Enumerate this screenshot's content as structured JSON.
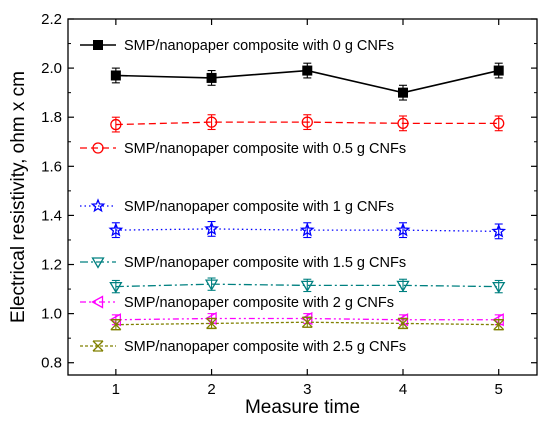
{
  "chart_data": {
    "type": "line",
    "xlabel": "Measure time",
    "ylabel": "Electrical resistivity, ohm x cm",
    "xlim": [
      0.5,
      5.4
    ],
    "ylim": [
      0.75,
      2.2
    ],
    "x": [
      1,
      2,
      3,
      4,
      5
    ],
    "xticks": [
      "1",
      "2",
      "3",
      "4",
      "5"
    ],
    "yticks": [
      "0.8",
      "1.0",
      "1.2",
      "1.4",
      "1.6",
      "1.8",
      "2.0",
      "2.2"
    ],
    "grid": false,
    "series": [
      {
        "name": "SMP/nanopaper composite with 0 g CNFs",
        "values": [
          1.97,
          1.96,
          1.99,
          1.9,
          1.99
        ],
        "errors": [
          0.03,
          0.03,
          0.03,
          0.03,
          0.03
        ],
        "color": "#000000",
        "marker": "square-filled",
        "line": "solid"
      },
      {
        "name": "SMP/nanopaper composite with 0.5 g CNFs",
        "values": [
          1.77,
          1.78,
          1.78,
          1.775,
          1.775
        ],
        "errors": [
          0.03,
          0.03,
          0.03,
          0.03,
          0.03
        ],
        "color": "#ff0000",
        "marker": "circle-open",
        "line": "dashed"
      },
      {
        "name": "SMP/nanopaper composite with 1 g CNFs",
        "values": [
          1.34,
          1.345,
          1.34,
          1.34,
          1.335
        ],
        "errors": [
          0.03,
          0.03,
          0.03,
          0.03,
          0.03
        ],
        "color": "#0000ff",
        "marker": "star-open",
        "line": "dotted"
      },
      {
        "name": "SMP/nanopaper composite with 1.5 g CNFs",
        "values": [
          1.11,
          1.12,
          1.115,
          1.115,
          1.11
        ],
        "errors": [
          0.025,
          0.025,
          0.025,
          0.025,
          0.025
        ],
        "color": "#008080",
        "marker": "triangle-down-open",
        "line": "dashdot"
      },
      {
        "name": "SMP/nanopaper composite with 2 g CNFs",
        "values": [
          0.975,
          0.98,
          0.98,
          0.975,
          0.975
        ],
        "errors": [
          0.02,
          0.02,
          0.02,
          0.02,
          0.02
        ],
        "color": "#ff00ff",
        "marker": "triangle-left-open",
        "line": "dashdotdot"
      },
      {
        "name": "SMP/nanopaper composite with 2.5 g CNFs",
        "values": [
          0.955,
          0.96,
          0.965,
          0.96,
          0.955
        ],
        "errors": [
          0.02,
          0.02,
          0.02,
          0.02,
          0.02
        ],
        "color": "#808000",
        "marker": "x-open",
        "line": "shortdot"
      }
    ]
  }
}
